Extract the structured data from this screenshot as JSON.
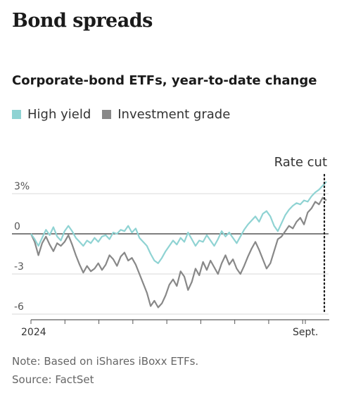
{
  "header": {
    "title": "Bond spreads",
    "subtitle": "Corporate-bond ETFs, year-to-date change"
  },
  "legend": [
    {
      "label": "High yield",
      "color": "#8fd3d3"
    },
    {
      "label": "Investment grade",
      "color": "#888888"
    }
  ],
  "chart_data": {
    "type": "line",
    "title": "Bond spreads",
    "subtitle": "Corporate-bond ETFs, year-to-date change",
    "x_labels": [
      "2024",
      "Sept."
    ],
    "y_ticks": [
      3,
      0,
      -3,
      -6
    ],
    "y_tick_labels": [
      "3%",
      "0",
      "-3",
      "-6"
    ],
    "ylim": [
      -6.5,
      4.2
    ],
    "unit": "%",
    "annotation": "Rate cut",
    "series": [
      {
        "name": "High yield",
        "color": "#8fd3d3",
        "values": [
          0,
          -0.4,
          -0.9,
          -0.3,
          0.3,
          -0.1,
          0.5,
          -0.2,
          -0.5,
          0.2,
          0.6,
          0.2,
          -0.3,
          -0.6,
          -0.9,
          -0.5,
          -0.7,
          -0.3,
          -0.6,
          -0.2,
          -0.1,
          -0.4,
          0.1,
          0.0,
          0.3,
          0.2,
          0.6,
          0.1,
          0.4,
          -0.3,
          -0.6,
          -0.9,
          -1.5,
          -2.0,
          -2.2,
          -1.8,
          -1.3,
          -0.9,
          -0.5,
          -0.8,
          -0.3,
          -0.6,
          0.1,
          -0.4,
          -0.9,
          -0.5,
          -0.6,
          -0.1,
          -0.5,
          -0.9,
          -0.4,
          0.2,
          -0.2,
          0.1,
          -0.3,
          -0.7,
          -0.2,
          0.3,
          0.7,
          1.0,
          1.3,
          0.9,
          1.5,
          1.7,
          1.3,
          0.6,
          0.2,
          0.8,
          1.4,
          1.8,
          2.1,
          2.3,
          2.2,
          2.5,
          2.4,
          2.8,
          3.1,
          3.3,
          3.6,
          3.9
        ]
      },
      {
        "name": "Investment grade",
        "color": "#888888",
        "values": [
          0,
          -0.6,
          -1.6,
          -0.7,
          -0.2,
          -0.8,
          -1.3,
          -0.7,
          -0.9,
          -0.6,
          -0.1,
          -0.8,
          -1.6,
          -2.3,
          -2.9,
          -2.4,
          -2.8,
          -2.6,
          -2.2,
          -2.7,
          -2.3,
          -1.6,
          -1.9,
          -2.4,
          -1.7,
          -1.4,
          -2.0,
          -1.8,
          -2.3,
          -3.0,
          -3.7,
          -4.4,
          -5.4,
          -5.0,
          -5.5,
          -5.2,
          -4.6,
          -3.8,
          -3.4,
          -3.9,
          -2.8,
          -3.2,
          -4.2,
          -3.6,
          -2.6,
          -3.1,
          -2.1,
          -2.7,
          -2.0,
          -2.5,
          -3.0,
          -2.2,
          -1.6,
          -2.3,
          -1.9,
          -2.6,
          -3.0,
          -2.4,
          -1.7,
          -1.1,
          -0.6,
          -1.2,
          -1.9,
          -2.6,
          -2.2,
          -1.3,
          -0.4,
          -0.2,
          0.2,
          0.6,
          0.4,
          0.9,
          1.2,
          0.7,
          1.6,
          1.9,
          2.4,
          2.2,
          2.7,
          2.5
        ]
      }
    ],
    "grid": true
  },
  "footer": {
    "note": "Note: Based on iShares iBoxx ETFs.",
    "source": "Source: FactSet"
  }
}
